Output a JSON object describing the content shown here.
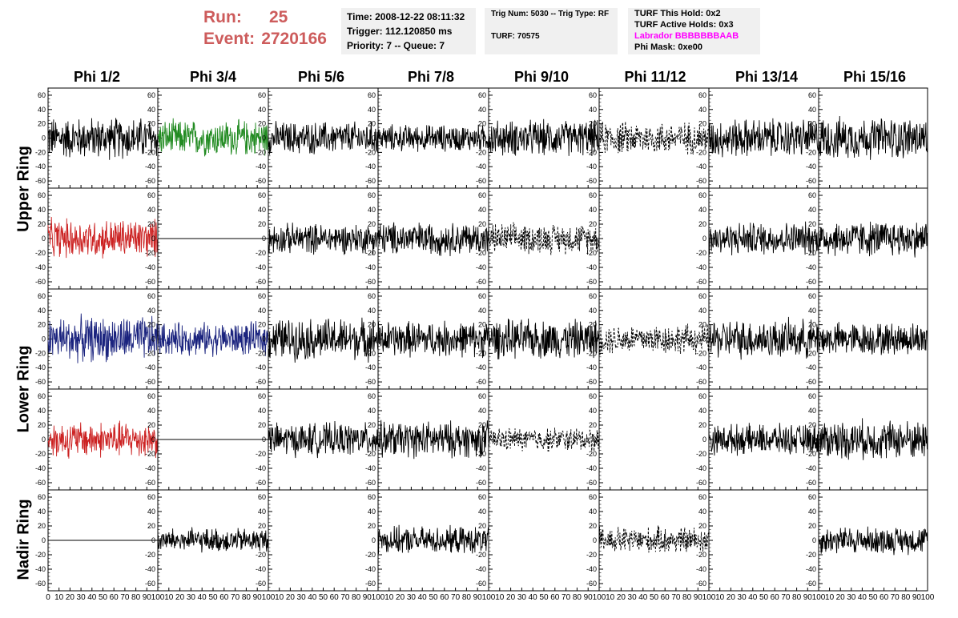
{
  "header": {
    "run_label": "Run:",
    "run_value": "25",
    "event_label": "Event:",
    "event_value": "2720166",
    "time": "Time: 2008-12-22 08:11:32",
    "trigger": "Trigger: 112.120850 ms",
    "priority": "Priority: 7 -- Queue: 7",
    "trig_num": "Trig Num: 5030 -- Trig Type: RF",
    "turf": "TURF: 70575",
    "turf_this_hold": "TURF This Hold: 0x2",
    "turf_active_holds": "TURF Active Holds: 0x3",
    "labrador": "Labrador BBBBBBBAAB",
    "phi_mask": "Phi Mask: 0xe00"
  },
  "columns": [
    "Phi 1/2",
    "Phi 3/4",
    "Phi 5/6",
    "Phi 7/8",
    "Phi 9/10",
    "Phi 11/12",
    "Phi 13/14",
    "Phi 15/16"
  ],
  "rings": [
    "Upper Ring",
    "Lower Ring",
    "Nadir Ring"
  ],
  "colors": {
    "header_red": "#cd5c5c",
    "box_bg": "#f0f0f0",
    "labrador": "#ff00ff",
    "trace_black": "#000000",
    "trace_green": "#228b22",
    "trace_red": "#cc2222",
    "trace_blue": "#1a237e"
  },
  "chart_data": {
    "type": "line",
    "layout": "grid of waveform panels, 5 rows x 8 columns",
    "xlim": [
      0,
      100
    ],
    "ylim": [
      -70,
      70
    ],
    "y_ticks": [
      -60,
      -40,
      -20,
      0,
      20,
      40,
      60
    ],
    "x_tick_labels": [
      "0",
      "10",
      "20",
      "30",
      "40",
      "50",
      "60",
      "70",
      "80",
      "90",
      "100"
    ],
    "panels": [
      [
        {
          "style": "solid",
          "color": "black",
          "amplitude": 28
        },
        {
          "style": "solid",
          "color": "green",
          "amplitude": 24
        },
        {
          "style": "solid",
          "color": "black",
          "amplitude": 22
        },
        {
          "style": "solid",
          "color": "black",
          "amplitude": 18
        },
        {
          "style": "solid",
          "color": "black",
          "amplitude": 24
        },
        {
          "style": "dashed",
          "color": "black",
          "amplitude": 22
        },
        {
          "style": "solid",
          "color": "black",
          "amplitude": 26
        },
        {
          "style": "solid",
          "color": "black",
          "amplitude": 28
        }
      ],
      [
        {
          "style": "solid",
          "color": "red",
          "amplitude": 26
        },
        {
          "style": "flat",
          "color": "black",
          "amplitude": 0
        },
        {
          "style": "solid",
          "color": "black",
          "amplitude": 20
        },
        {
          "style": "solid",
          "color": "black",
          "amplitude": 22
        },
        {
          "style": "dashed",
          "color": "black",
          "amplitude": 20
        },
        {
          "style": "empty",
          "color": "black",
          "amplitude": 0
        },
        {
          "style": "solid",
          "color": "black",
          "amplitude": 22
        },
        {
          "style": "solid",
          "color": "black",
          "amplitude": 24
        }
      ],
      [
        {
          "style": "solid",
          "color": "blue",
          "amplitude": 30
        },
        {
          "style": "solid",
          "color": "blue",
          "amplitude": 22
        },
        {
          "style": "solid",
          "color": "black",
          "amplitude": 28
        },
        {
          "style": "solid",
          "color": "black",
          "amplitude": 24
        },
        {
          "style": "solid",
          "color": "black",
          "amplitude": 26
        },
        {
          "style": "dashed",
          "color": "black",
          "amplitude": 20
        },
        {
          "style": "solid",
          "color": "black",
          "amplitude": 26
        },
        {
          "style": "solid",
          "color": "black",
          "amplitude": 22
        }
      ],
      [
        {
          "style": "solid",
          "color": "red",
          "amplitude": 24
        },
        {
          "style": "flat",
          "color": "black",
          "amplitude": 0
        },
        {
          "style": "solid",
          "color": "black",
          "amplitude": 22
        },
        {
          "style": "solid",
          "color": "black",
          "amplitude": 24
        },
        {
          "style": "dashed",
          "color": "black",
          "amplitude": 16
        },
        {
          "style": "empty",
          "color": "black",
          "amplitude": 0
        },
        {
          "style": "solid",
          "color": "black",
          "amplitude": 20
        },
        {
          "style": "solid",
          "color": "black",
          "amplitude": 26
        }
      ],
      [
        {
          "style": "flat",
          "color": "black",
          "amplitude": 0
        },
        {
          "style": "solid",
          "color": "black",
          "amplitude": 16
        },
        {
          "style": "empty",
          "color": "black",
          "amplitude": 0
        },
        {
          "style": "solid",
          "color": "black",
          "amplitude": 18
        },
        {
          "style": "empty",
          "color": "black",
          "amplitude": 0
        },
        {
          "style": "dashed",
          "color": "black",
          "amplitude": 18
        },
        {
          "style": "empty",
          "color": "black",
          "amplitude": 0
        },
        {
          "style": "solid",
          "color": "black",
          "amplitude": 18
        }
      ]
    ]
  }
}
